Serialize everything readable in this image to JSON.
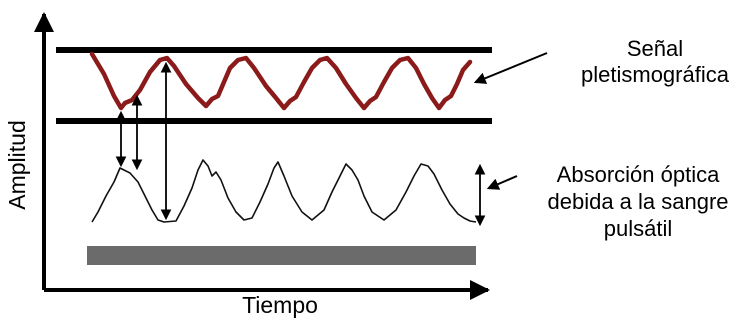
{
  "diagram": {
    "labels": {
      "ppg_signal": {
        "line1": "Señal",
        "line2": "pletismográfica"
      },
      "optical_absorption": {
        "line1": "Absorción óptica",
        "line2": "debida a la sangre",
        "line3": "pulsátil"
      },
      "x_axis": "Tiempo",
      "y_axis": "Amplitud"
    },
    "colors": {
      "ppg_signal": "#8B1A1A",
      "absorption_signal": "#111111",
      "baseline_band": "#6b6b6b",
      "axes": "#000000"
    }
  }
}
